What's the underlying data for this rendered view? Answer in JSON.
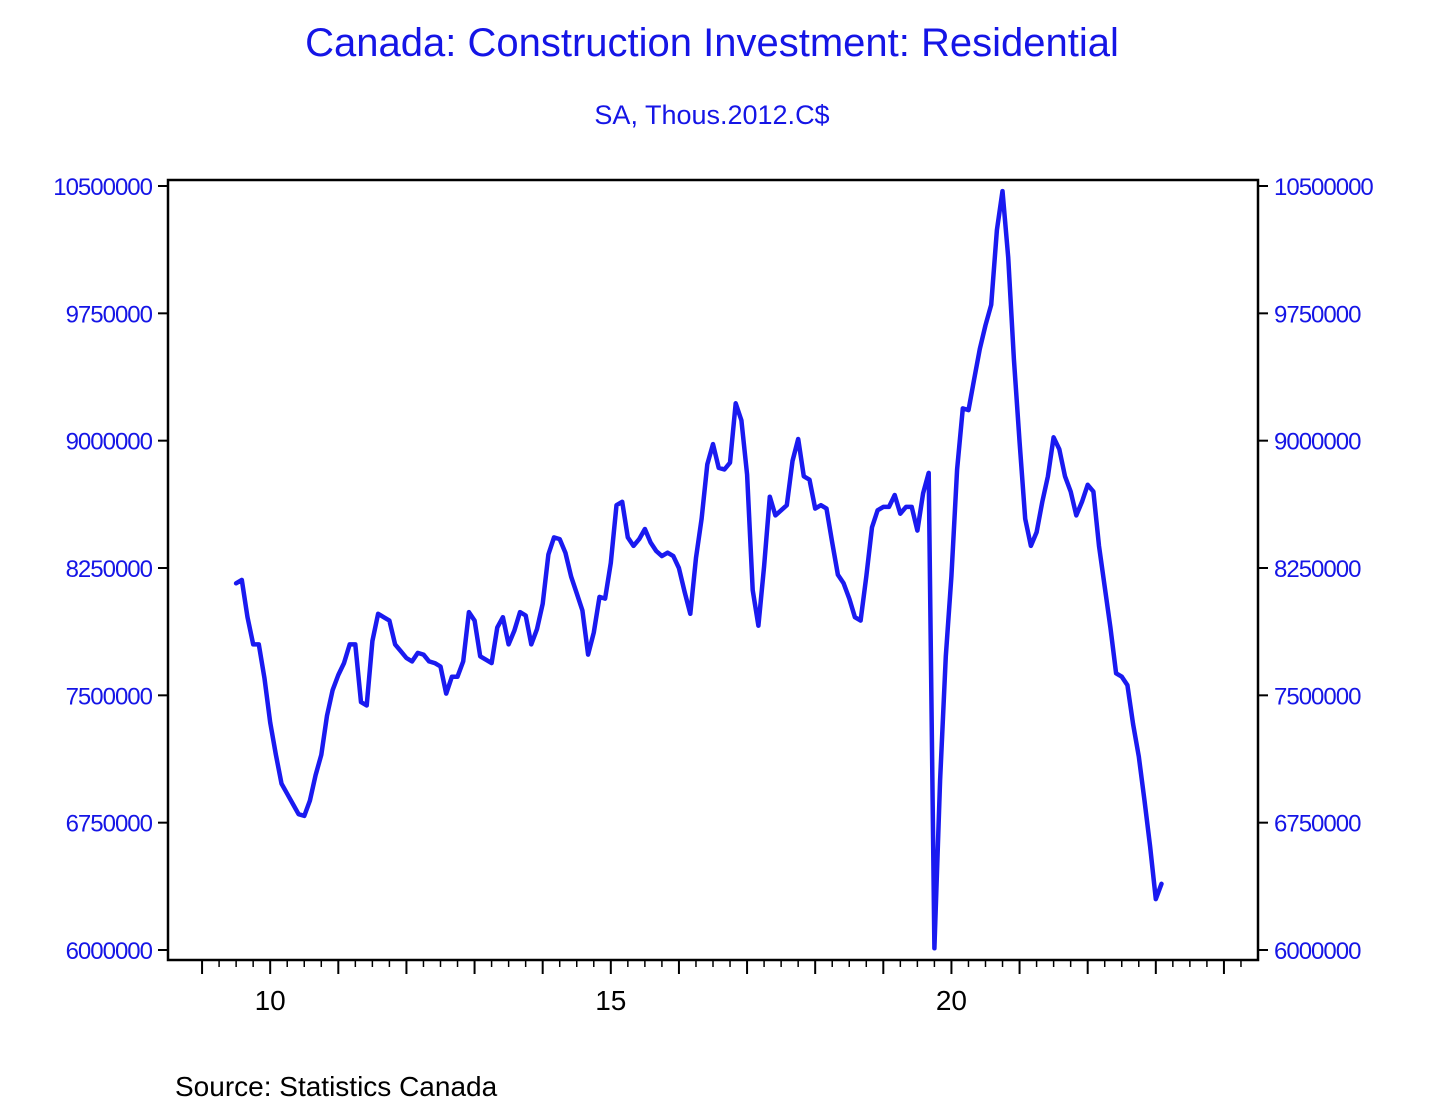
{
  "chart_data": {
    "type": "line",
    "title": "Canada: Construction Investment: Residential",
    "subtitle": "SA, Thous.2012.C$",
    "source": "Source:  Statistics Canada",
    "frequency": "monthly",
    "x_start": "2009-07",
    "x_end": "2023-02",
    "xlim": [
      2008.5,
      2024.5
    ],
    "ylim": [
      6000000,
      10500000
    ],
    "y_ticks": [
      "10500000",
      "9750000",
      "9000000",
      "8250000",
      "7500000",
      "6750000",
      "6000000"
    ],
    "x_ticks": [
      {
        "label": "10",
        "value": 2010
      },
      {
        "label": "15",
        "value": 2015
      },
      {
        "label": "20",
        "value": 2020
      }
    ],
    "grid": false,
    "line_color": "#1a1af0",
    "text_color": "#1515e6",
    "series": [
      {
        "values": [
          8160000,
          8180000,
          7960000,
          7800000,
          7800000,
          7600000,
          7340000,
          7150000,
          6980000,
          6920000,
          6860000,
          6800000,
          6790000,
          6880000,
          7030000,
          7150000,
          7380000,
          7530000,
          7620000,
          7690000,
          7800000,
          7800000,
          7460000,
          7440000,
          7820000,
          7980000,
          7960000,
          7940000,
          7800000,
          7760000,
          7720000,
          7700000,
          7750000,
          7740000,
          7700000,
          7690000,
          7670000,
          7510000,
          7610000,
          7610000,
          7700000,
          7990000,
          7940000,
          7730000,
          7710000,
          7690000,
          7900000,
          7960000,
          7800000,
          7880000,
          7990000,
          7970000,
          7800000,
          7890000,
          8040000,
          8330000,
          8430000,
          8420000,
          8340000,
          8200000,
          8100000,
          8000000,
          7740000,
          7870000,
          8080000,
          8070000,
          8280000,
          8620000,
          8640000,
          8430000,
          8380000,
          8420000,
          8480000,
          8400000,
          8350000,
          8320000,
          8340000,
          8320000,
          8250000,
          8110000,
          7980000,
          8310000,
          8540000,
          8860000,
          8980000,
          8840000,
          8830000,
          8870000,
          9220000,
          9120000,
          8800000,
          8120000,
          7910000,
          8260000,
          8670000,
          8560000,
          8590000,
          8620000,
          8880000,
          9010000,
          8790000,
          8770000,
          8600000,
          8620000,
          8600000,
          8400000,
          8210000,
          8160000,
          8070000,
          7960000,
          7940000,
          8200000,
          8490000,
          8590000,
          8610000,
          8610000,
          8680000,
          8570000,
          8610000,
          8610000,
          8470000,
          8690000,
          8810000,
          6010000,
          7000000,
          7730000,
          8200000,
          8830000,
          9190000,
          9180000,
          9360000,
          9540000,
          9680000,
          9800000,
          10240000,
          10470000,
          10080000,
          9480000,
          8990000,
          8540000,
          8380000,
          8460000,
          8640000,
          8790000,
          9020000,
          8950000,
          8790000,
          8700000,
          8560000,
          8640000,
          8740000,
          8700000,
          8380000,
          8140000,
          7900000,
          7630000,
          7610000,
          7560000,
          7330000,
          7140000,
          6880000,
          6610000,
          6300000,
          6390000
        ]
      }
    ]
  }
}
